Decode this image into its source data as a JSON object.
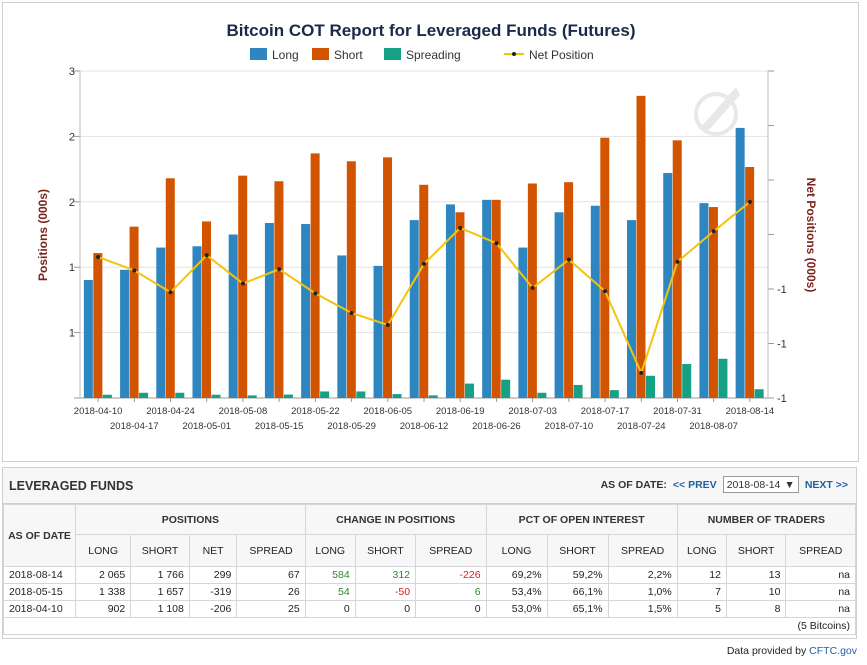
{
  "chart_data": {
    "type": "bar",
    "title": "Bitcoin COT Report for Leveraged Funds (Futures)",
    "ylabel": "Positions (000s)",
    "y2label": "Net Positions (000s)",
    "legend_position": "top",
    "categories": [
      "2018-04-10",
      "2018-04-17",
      "2018-04-24",
      "2018-05-01",
      "2018-05-08",
      "2018-05-15",
      "2018-05-22",
      "2018-05-29",
      "2018-06-05",
      "2018-06-12",
      "2018-06-19",
      "2018-06-26",
      "2018-07-03",
      "2018-07-10",
      "2018-07-17",
      "2018-07-24",
      "2018-07-31",
      "2018-08-07",
      "2018-08-14"
    ],
    "y_ticks_printed": [
      "3",
      "2",
      "2",
      "1",
      "1",
      ""
    ],
    "ylim": [
      0,
      2.5
    ],
    "y2_ticks_printed": [
      "",
      "",
      "",
      "",
      "-1",
      "-1",
      "-1"
    ],
    "y2lim": [
      -1.5,
      1.5
    ],
    "series": [
      {
        "name": "Long",
        "type": "bar",
        "color": "#2e86c1",
        "values": [
          0.902,
          0.98,
          1.15,
          1.16,
          1.25,
          1.338,
          1.33,
          1.09,
          1.01,
          1.36,
          1.48,
          1.515,
          1.15,
          1.42,
          1.47,
          1.36,
          1.72,
          1.49,
          2.065
        ]
      },
      {
        "name": "Short",
        "type": "bar",
        "color": "#d35400",
        "values": [
          1.108,
          1.31,
          1.68,
          1.35,
          1.7,
          1.657,
          1.87,
          1.81,
          1.84,
          1.63,
          1.42,
          1.515,
          1.64,
          1.65,
          1.99,
          2.31,
          1.97,
          1.46,
          1.766
        ]
      },
      {
        "name": "Spreading",
        "type": "bar",
        "color": "#16a085",
        "values": [
          0.025,
          0.04,
          0.04,
          0.025,
          0.02,
          0.026,
          0.05,
          0.05,
          0.03,
          0.02,
          0.11,
          0.14,
          0.04,
          0.1,
          0.06,
          0.17,
          0.26,
          0.3,
          0.067
        ]
      },
      {
        "name": "Net Position",
        "type": "line",
        "axis": "y2",
        "color": "#f1c40f",
        "values": [
          -0.206,
          -0.33,
          -0.53,
          -0.19,
          -0.45,
          -0.319,
          -0.54,
          -0.72,
          -0.83,
          -0.27,
          0.06,
          -0.08,
          -0.49,
          -0.23,
          -0.52,
          -1.27,
          -0.25,
          0.03,
          0.299
        ]
      }
    ]
  },
  "table": {
    "title": "LEVERAGED FUNDS",
    "as_of_label": "AS OF DATE:",
    "prev_label": "<< PREV",
    "next_label": "NEXT >>",
    "selected_date": "2018-08-14",
    "headers": {
      "as_of_date": "AS OF DATE",
      "positions": "POSITIONS",
      "change": "CHANGE IN POSITIONS",
      "pct": "PCT OF OPEN INTEREST",
      "traders": "NUMBER OF TRADERS",
      "long": "LONG",
      "short": "SHORT",
      "net": "NET",
      "spread": "SPREAD"
    },
    "rows": [
      {
        "date": "2018-08-14",
        "pos_long": "2 065",
        "pos_short": "1 766",
        "pos_net": "299",
        "pos_spread": "67",
        "chg_long": "584",
        "chg_short": "312",
        "chg_spread": "-226",
        "pct_long": "69,2%",
        "pct_short": "59,2%",
        "pct_spread": "2,2%",
        "tr_long": "12",
        "tr_short": "13",
        "tr_spread": "na"
      },
      {
        "date": "2018-05-15",
        "pos_long": "1 338",
        "pos_short": "1 657",
        "pos_net": "-319",
        "pos_spread": "26",
        "chg_long": "54",
        "chg_short": "-50",
        "chg_spread": "6",
        "pct_long": "53,4%",
        "pct_short": "66,1%",
        "pct_spread": "1,0%",
        "tr_long": "7",
        "tr_short": "10",
        "tr_spread": "na"
      },
      {
        "date": "2018-04-10",
        "pos_long": "902",
        "pos_short": "1 108",
        "pos_net": "-206",
        "pos_spread": "25",
        "chg_long": "0",
        "chg_short": "0",
        "chg_spread": "0",
        "pct_long": "53,0%",
        "pct_short": "65,1%",
        "pct_spread": "1,5%",
        "tr_long": "5",
        "tr_short": "8",
        "tr_spread": "na"
      }
    ],
    "note": "(5 Bitcoins)"
  },
  "footer": {
    "prefix": "Data provided by",
    "source": "CFTC.gov"
  },
  "colors": {
    "long": "#2e86c1",
    "short": "#d35400",
    "spreading": "#16a085",
    "net": "#f1c40f",
    "axis_title": "#7b241c",
    "title": "#1b2a49"
  }
}
